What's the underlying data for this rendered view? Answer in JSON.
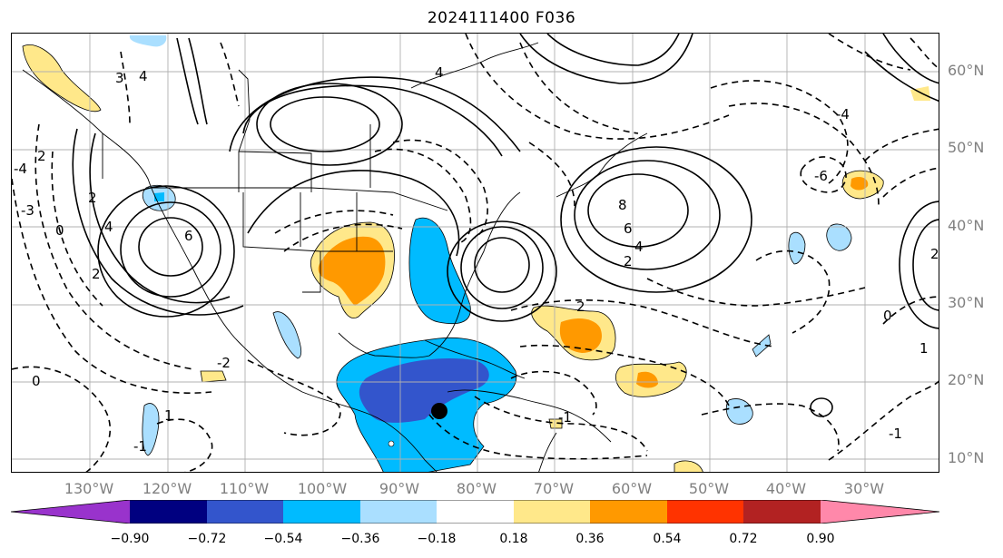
{
  "title": "2024111400 F036",
  "lat_labels": [
    "60°N",
    "50°N",
    "40°N",
    "30°N",
    "20°N",
    "10°N"
  ],
  "lon_labels": [
    "130°W",
    "120°W",
    "110°W",
    "100°W",
    "90°W",
    "80°W",
    "70°W",
    "60°W",
    "50°W",
    "40°W",
    "30°W"
  ],
  "contour_labels": [
    "4",
    "3",
    "2",
    "0",
    "-4",
    "-3",
    "2",
    "4",
    "-2",
    "2",
    "6",
    "8",
    "6",
    "4",
    "2",
    "-6",
    "4",
    "-4",
    "2",
    "-1",
    "1",
    "-1",
    "0",
    "1",
    "-1",
    "0",
    "2"
  ],
  "colorbar": {
    "colors": [
      "#9933cc",
      "#000080",
      "#3355cc",
      "#00bbff",
      "#aadfff",
      "#ffffff",
      "#ffe88a",
      "#ff9900",
      "#ff3300",
      "#b22222",
      "#ff88aa"
    ],
    "ticks": [
      "−0.90",
      "−0.72",
      "−0.54",
      "−0.36",
      "−0.18",
      "0.18",
      "0.36",
      "0.54",
      "0.72",
      "0.90"
    ]
  },
  "marker_icon": "black-dot"
}
